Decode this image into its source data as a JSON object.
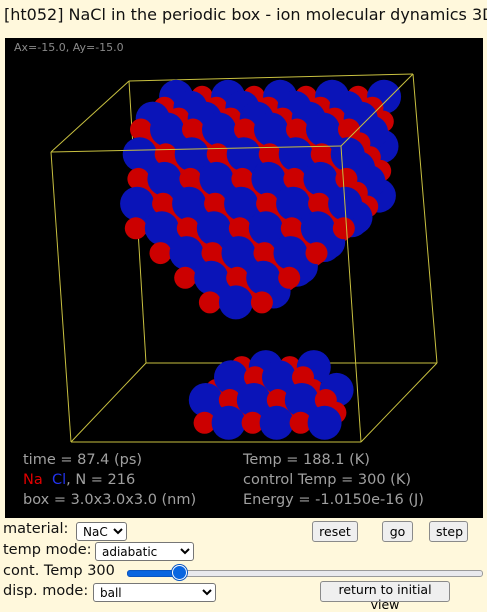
{
  "title": "[ht052] NaCl in the periodic box - ion molecular dynamics 3D",
  "viewer": {
    "rotation_readout": "Ax=-15.0, Ay=-15.0",
    "time_label": "time = 87.4 (ps)",
    "na_label": "Na",
    "cl_label": "Cl",
    "count_label": ", N = 216",
    "box_label": "box = 3.0x3.0x3.0 (nm)",
    "temp_label": "Temp = 188.1 (K)",
    "control_temp_label": "control Temp = 300 (K)",
    "energy_label": "Energy = -1.0150e-16 (J)",
    "colors": {
      "background": "#000000",
      "box_edges": "#c8c040",
      "na": "#cc0000",
      "cl": "#0a14b8",
      "info_text": "#a0a0a0"
    }
  },
  "controls": {
    "material_label": "material:",
    "material_value": "NaCl",
    "temp_mode_label": "temp mode:",
    "temp_mode_value": "adiabatic",
    "cont_temp_label": "cont. Temp",
    "cont_temp_value": "300",
    "cont_temp_slider_fraction": 0.13,
    "disp_mode_label": "disp. mode:",
    "disp_mode_value": "ball",
    "reset_label": "reset",
    "go_label": "go",
    "step_label": "step",
    "return_label": "return to initial view",
    "accent_color": "#0a66e0"
  }
}
